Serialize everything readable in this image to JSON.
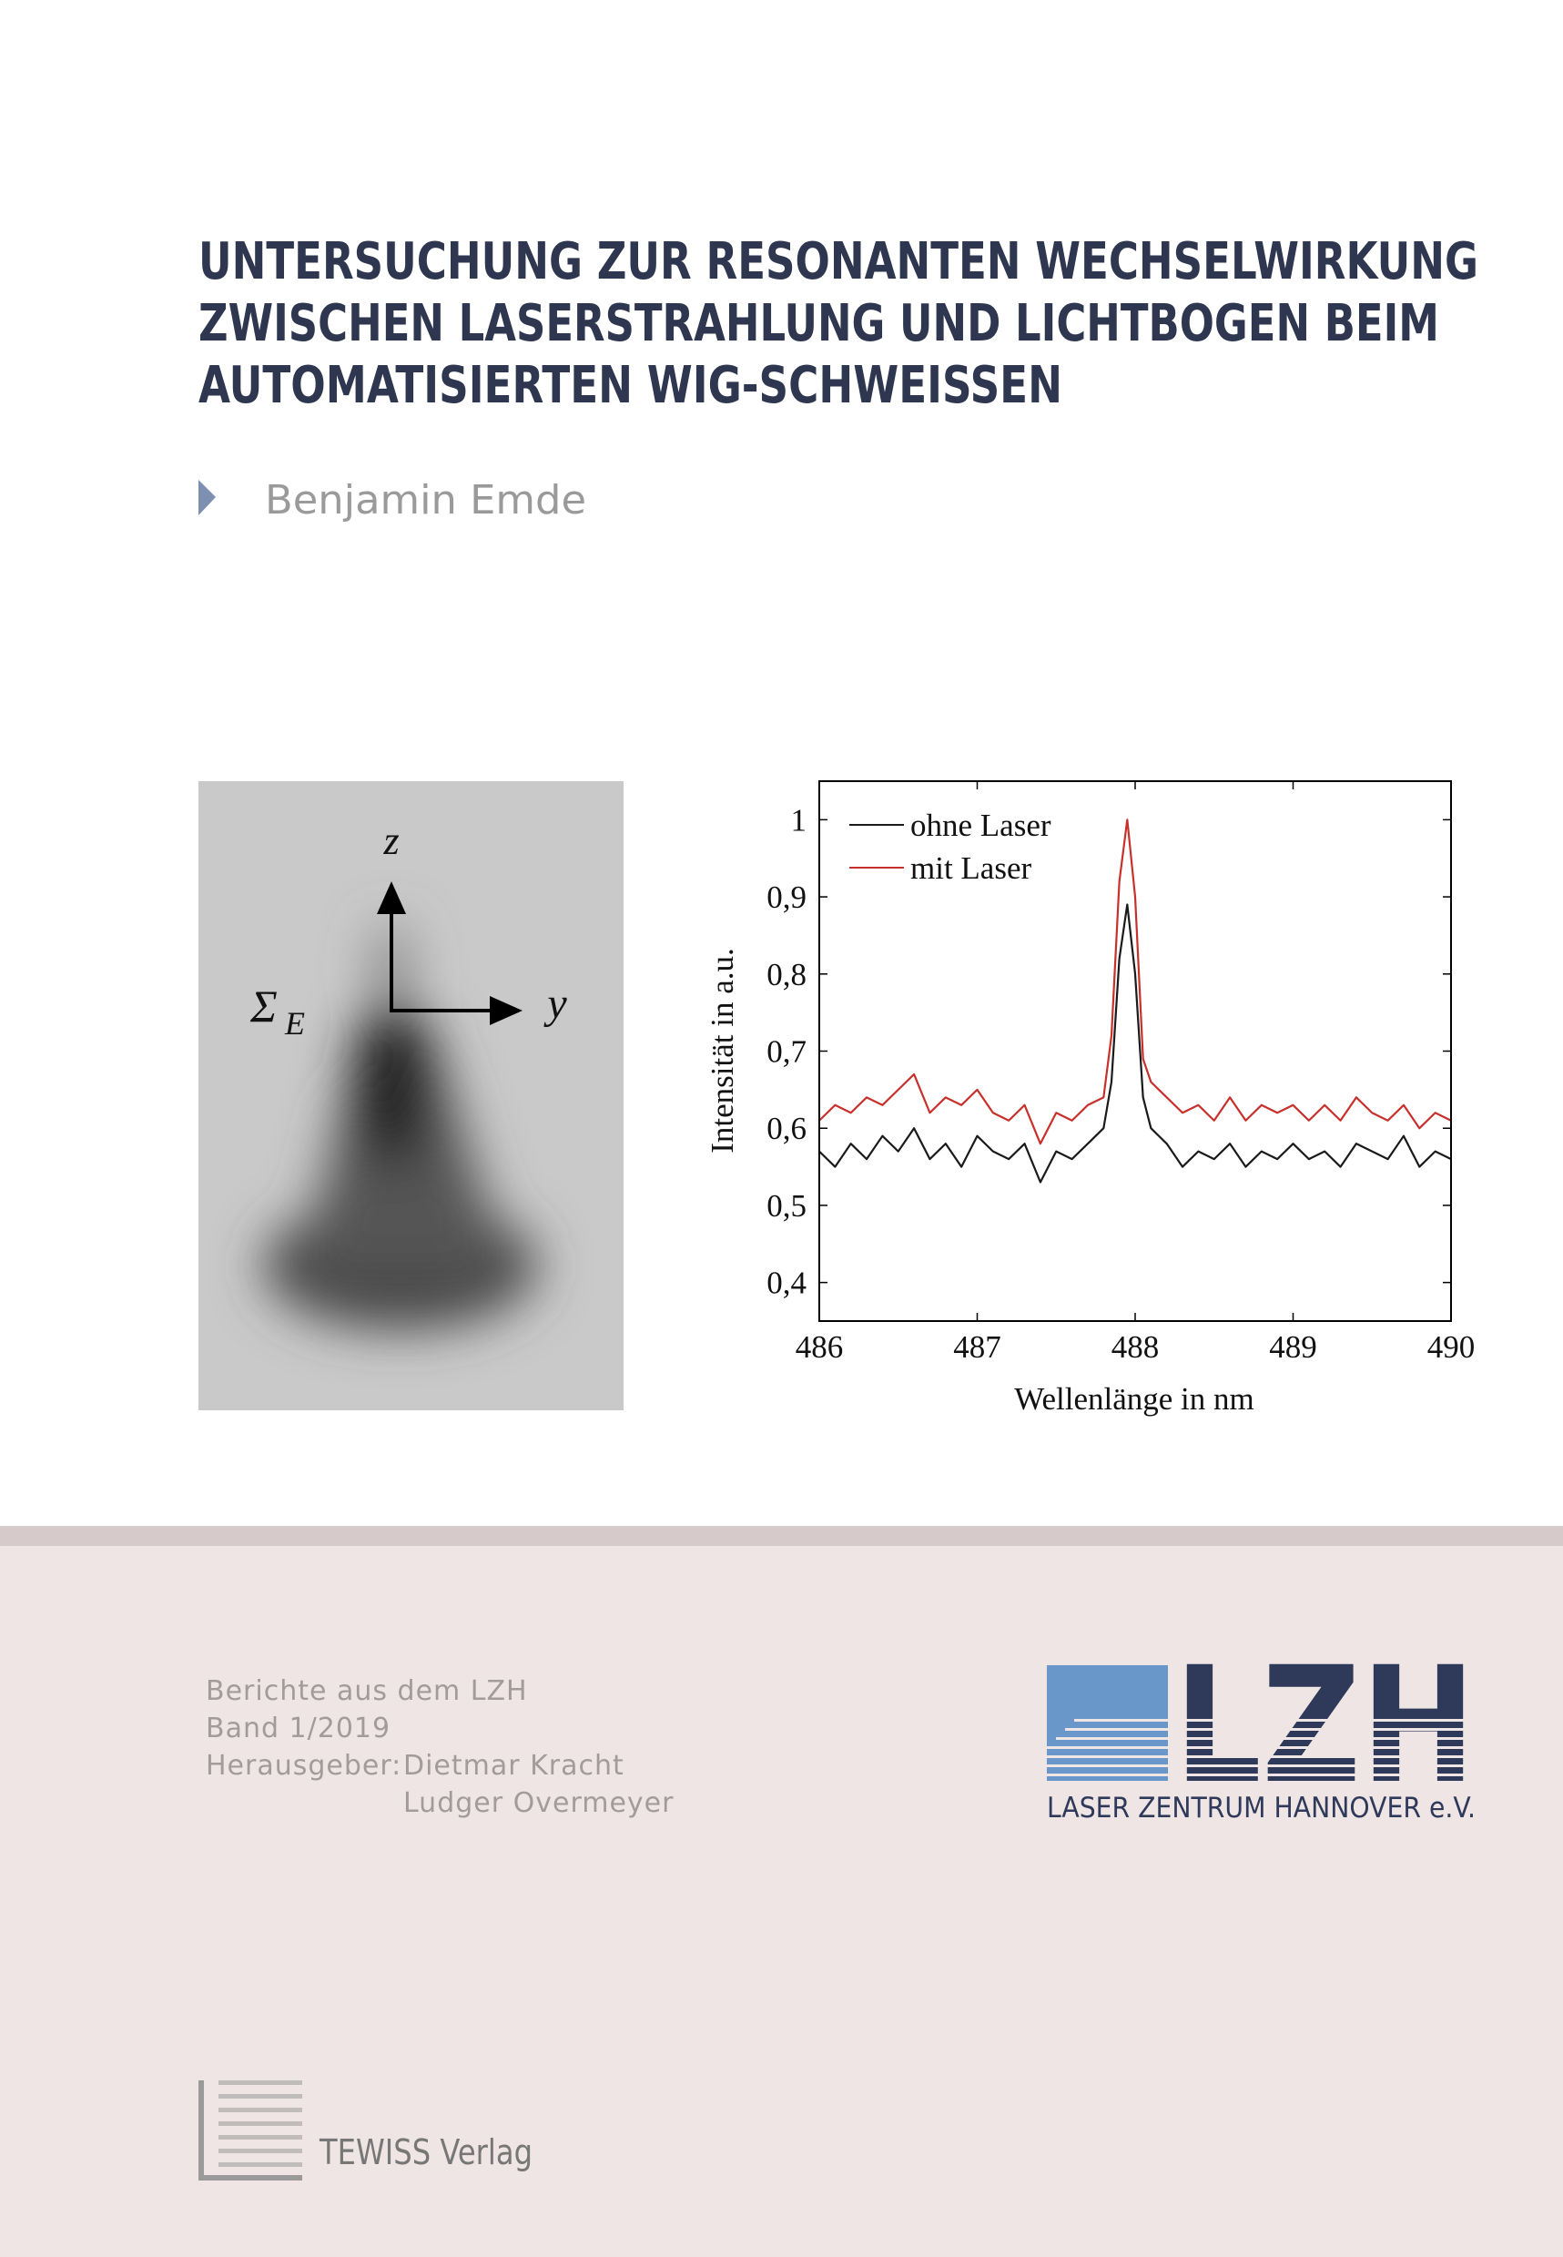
{
  "cover": {
    "title_lines": [
      "UNTERSUCHUNG ZUR RESONANTEN WECHSELWIRKUNG",
      "ZWISCHEN LASERSTRAHLUNG UND LICHTBOGEN BEIM",
      "AUTOMATISIERTEN WIG-SCHWEISSEN"
    ],
    "author": "Benjamin Emde",
    "series": "Berichte aus dem LZH",
    "volume": "Band 1/2019",
    "editor_label": "Herausgeber:",
    "editors": [
      "Dietmar Kracht",
      "Ludger Overmeyer"
    ],
    "logo_letters": "LZH",
    "logo_name": "LASER ZENTRUM HANNOVER e.V.",
    "publisher": "TEWISS Verlag"
  },
  "figure": {
    "z": "z",
    "y": "y",
    "sigma": "Σ",
    "sigma_sub": "E"
  },
  "chart_data": {
    "type": "line",
    "x_label": "Wellenlänge in nm",
    "y_label": "Intensität in a.u.",
    "x": [
      486.0,
      486.1,
      486.2,
      486.3,
      486.4,
      486.5,
      486.6,
      486.7,
      486.8,
      486.9,
      487.0,
      487.1,
      487.2,
      487.3,
      487.4,
      487.5,
      487.6,
      487.7,
      487.8,
      487.85,
      487.9,
      487.95,
      488.0,
      488.05,
      488.1,
      488.2,
      488.3,
      488.4,
      488.5,
      488.6,
      488.7,
      488.8,
      488.9,
      489.0,
      489.1,
      489.2,
      489.3,
      489.4,
      489.5,
      489.6,
      489.7,
      489.8,
      489.9,
      490.0
    ],
    "series": [
      {
        "name": "ohne Laser",
        "color": "#1a1a1a",
        "values": [
          0.57,
          0.55,
          0.58,
          0.56,
          0.59,
          0.57,
          0.6,
          0.56,
          0.58,
          0.55,
          0.59,
          0.57,
          0.56,
          0.58,
          0.53,
          0.57,
          0.56,
          0.58,
          0.6,
          0.66,
          0.82,
          0.89,
          0.8,
          0.64,
          0.6,
          0.58,
          0.55,
          0.57,
          0.56,
          0.58,
          0.55,
          0.57,
          0.56,
          0.58,
          0.56,
          0.57,
          0.55,
          0.58,
          0.57,
          0.56,
          0.59,
          0.55,
          0.57,
          0.56
        ]
      },
      {
        "name": "mit Laser",
        "color": "#c8302c",
        "values": [
          0.61,
          0.63,
          0.62,
          0.64,
          0.63,
          0.65,
          0.67,
          0.62,
          0.64,
          0.63,
          0.65,
          0.62,
          0.61,
          0.63,
          0.58,
          0.62,
          0.61,
          0.63,
          0.64,
          0.72,
          0.92,
          1.0,
          0.9,
          0.69,
          0.66,
          0.64,
          0.62,
          0.63,
          0.61,
          0.64,
          0.61,
          0.63,
          0.62,
          0.63,
          0.61,
          0.63,
          0.61,
          0.64,
          0.62,
          0.61,
          0.63,
          0.6,
          0.62,
          0.61
        ]
      }
    ],
    "xlim": [
      486,
      490
    ],
    "ylim": [
      0.35,
      1.05
    ],
    "xticks": [
      486,
      487,
      488,
      489,
      490
    ],
    "yticks": [
      {
        "value": 0.4,
        "label": "0,4"
      },
      {
        "value": 0.5,
        "label": "0,5"
      },
      {
        "value": 0.6,
        "label": "0,6"
      },
      {
        "value": 0.7,
        "label": "0,7"
      },
      {
        "value": 0.8,
        "label": "0,8"
      },
      {
        "value": 0.9,
        "label": "0,9"
      },
      1
    ],
    "legend": "upper left",
    "grid": false
  }
}
